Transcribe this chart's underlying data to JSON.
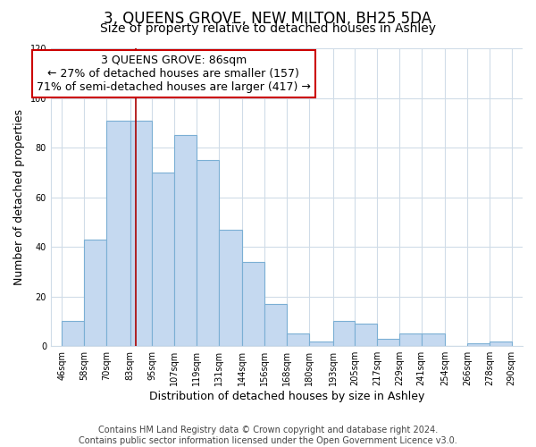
{
  "title": "3, QUEENS GROVE, NEW MILTON, BH25 5DA",
  "subtitle": "Size of property relative to detached houses in Ashley",
  "xlabel": "Distribution of detached houses by size in Ashley",
  "ylabel": "Number of detached properties",
  "footer_line1": "Contains HM Land Registry data © Crown copyright and database right 2024.",
  "footer_line2": "Contains public sector information licensed under the Open Government Licence v3.0.",
  "annotation_title": "3 QUEENS GROVE: 86sqm",
  "annotation_line1": "← 27% of detached houses are smaller (157)",
  "annotation_line2": "71% of semi-detached houses are larger (417) →",
  "bar_left_edges": [
    46,
    58,
    70,
    83,
    95,
    107,
    119,
    131,
    144,
    156,
    168,
    180,
    193,
    205,
    217,
    229,
    241,
    254,
    266,
    278
  ],
  "bar_widths": [
    12,
    12,
    13,
    12,
    12,
    12,
    12,
    13,
    12,
    12,
    12,
    13,
    12,
    12,
    12,
    12,
    13,
    12,
    12,
    12
  ],
  "bar_heights": [
    10,
    43,
    91,
    91,
    70,
    85,
    75,
    47,
    34,
    17,
    5,
    2,
    10,
    9,
    3,
    5,
    5,
    0,
    1,
    2
  ],
  "xtick_labels": [
    "46sqm",
    "58sqm",
    "70sqm",
    "83sqm",
    "95sqm",
    "107sqm",
    "119sqm",
    "131sqm",
    "144sqm",
    "156sqm",
    "168sqm",
    "180sqm",
    "193sqm",
    "205sqm",
    "217sqm",
    "229sqm",
    "241sqm",
    "254sqm",
    "266sqm",
    "278sqm",
    "290sqm"
  ],
  "xtick_positions": [
    46,
    58,
    70,
    83,
    95,
    107,
    119,
    131,
    144,
    156,
    168,
    180,
    193,
    205,
    217,
    229,
    241,
    254,
    266,
    278,
    290
  ],
  "ylim": [
    0,
    120
  ],
  "yticks": [
    0,
    20,
    40,
    60,
    80,
    100,
    120
  ],
  "bar_color": "#c5d9f0",
  "bar_edge_color": "#7bafd4",
  "marker_x": 86,
  "marker_color": "#aa0000",
  "annotation_box_color": "#ffffff",
  "annotation_box_edge": "#cc0000",
  "background_color": "#ffffff",
  "plot_bg_color": "#ffffff",
  "grid_color": "#d0dce8",
  "title_fontsize": 12,
  "subtitle_fontsize": 10,
  "axis_label_fontsize": 9,
  "tick_fontsize": 7,
  "annotation_fontsize": 9,
  "footer_fontsize": 7
}
